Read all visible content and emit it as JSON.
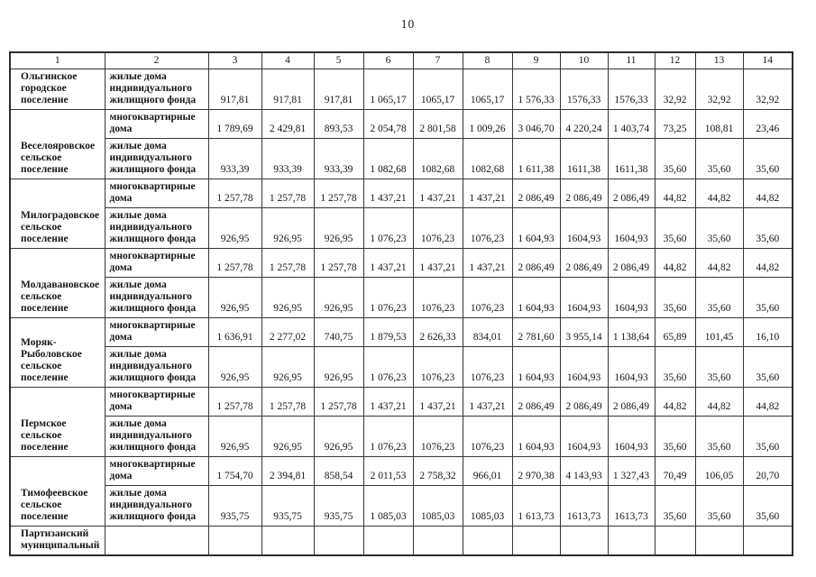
{
  "page": {
    "number": "10"
  },
  "table": {
    "header": [
      "1",
      "2",
      "3",
      "4",
      "5",
      "6",
      "7",
      "8",
      "9",
      "10",
      "11",
      "12",
      "13",
      "14"
    ],
    "rows": [
      {
        "settlement": "Ольгинское\nгородское\nпоселение",
        "rowspan": 1,
        "housing_type": "жилые дома\nиндивидуального\nжилищного фонда",
        "values": [
          "917,81",
          "917,81",
          "917,81",
          "1 065,17",
          "1065,17",
          "1065,17",
          "1 576,33",
          "1576,33",
          "1576,33",
          "32,92",
          "32,92",
          "32,92"
        ]
      },
      {
        "settlement": "Веселояровское\nсельское\nпоселение",
        "rowspan": 2,
        "housing_type": "многоквартирные\nдома",
        "values": [
          "1 789,69",
          "2 429,81",
          "893,53",
          "2 054,78",
          "2 801,58",
          "1 009,26",
          "3 046,70",
          "4 220,24",
          "1 403,74",
          "73,25",
          "108,81",
          "23,46"
        ]
      },
      {
        "housing_type": "жилые дома\nиндивидуального\nжилищного фонда",
        "values": [
          "933,39",
          "933,39",
          "933,39",
          "1 082,68",
          "1082,68",
          "1082,68",
          "1 611,38",
          "1611,38",
          "1611,38",
          "35,60",
          "35,60",
          "35,60"
        ]
      },
      {
        "settlement": "Милоградовское\nсельское\nпоселение",
        "rowspan": 2,
        "housing_type": "многоквартирные\nдома",
        "values": [
          "1 257,78",
          "1 257,78",
          "1 257,78",
          "1 437,21",
          "1 437,21",
          "1 437,21",
          "2 086,49",
          "2 086,49",
          "2 086,49",
          "44,82",
          "44,82",
          "44,82"
        ]
      },
      {
        "housing_type": "жилые дома\nиндивидуального\nжилищного фонда",
        "values": [
          "926,95",
          "926,95",
          "926,95",
          "1 076,23",
          "1076,23",
          "1076,23",
          "1 604,93",
          "1604,93",
          "1604,93",
          "35,60",
          "35,60",
          "35,60"
        ]
      },
      {
        "settlement": "Молдавановское\nсельское\nпоселение",
        "rowspan": 2,
        "housing_type": "многоквартирные\nдома",
        "values": [
          "1 257,78",
          "1 257,78",
          "1 257,78",
          "1 437,21",
          "1 437,21",
          "1 437,21",
          "2 086,49",
          "2 086,49",
          "2 086,49",
          "44,82",
          "44,82",
          "44,82"
        ]
      },
      {
        "housing_type": "жилые дома\nиндивидуального\nжилищного фонда",
        "values": [
          "926,95",
          "926,95",
          "926,95",
          "1 076,23",
          "1076,23",
          "1076,23",
          "1 604,93",
          "1604,93",
          "1604,93",
          "35,60",
          "35,60",
          "35,60"
        ]
      },
      {
        "settlement": "Моряк-\nРыболовское\nсельское\nпоселение",
        "rowspan": 2,
        "housing_type": "многоквартирные\nдома",
        "values": [
          "1 636,91",
          "2 277,02",
          "740,75",
          "1 879,53",
          "2 626,33",
          "834,01",
          "2 781,60",
          "3 955,14",
          "1 138,64",
          "65,89",
          "101,45",
          "16,10"
        ]
      },
      {
        "housing_type": "жилые дома\nиндивидуального\nжилищного фонда",
        "values": [
          "926,95",
          "926,95",
          "926,95",
          "1 076,23",
          "1076,23",
          "1076,23",
          "1 604,93",
          "1604,93",
          "1604,93",
          "35,60",
          "35,60",
          "35,60"
        ]
      },
      {
        "settlement": "Пермское\nсельское\nпоселение",
        "rowspan": 2,
        "housing_type": "многоквартирные\nдома",
        "values": [
          "1 257,78",
          "1 257,78",
          "1 257,78",
          "1 437,21",
          "1 437,21",
          "1 437,21",
          "2 086,49",
          "2 086,49",
          "2 086,49",
          "44,82",
          "44,82",
          "44,82"
        ]
      },
      {
        "housing_type": "жилые дома\nиндивидуального\nжилищного фонда",
        "values": [
          "926,95",
          "926,95",
          "926,95",
          "1 076,23",
          "1076,23",
          "1076,23",
          "1 604,93",
          "1604,93",
          "1604,93",
          "35,60",
          "35,60",
          "35,60"
        ]
      },
      {
        "settlement": "Тимофеевское\nсельское\nпоселение",
        "rowspan": 2,
        "housing_type": "многоквартирные\nдома",
        "values": [
          "1 754,70",
          "2 394,81",
          "858,54",
          "2 011,53",
          "2 758,32",
          "966,01",
          "2 970,38",
          "4 143,93",
          "1 327,43",
          "70,49",
          "106,05",
          "20,70"
        ]
      },
      {
        "housing_type": "жилые дома\nиндивидуального\nжилищного фонда",
        "values": [
          "935,75",
          "935,75",
          "935,75",
          "1 085,03",
          "1085,03",
          "1085,03",
          "1 613,73",
          "1613,73",
          "1613,73",
          "35,60",
          "35,60",
          "35,60"
        ]
      },
      {
        "settlement": "Партизанский\nмуниципальный",
        "rowspan": 1,
        "housing_type": "",
        "values": [
          "",
          "",
          "",
          "",
          "",
          "",
          "",
          "",
          "",
          "",
          "",
          ""
        ]
      }
    ]
  }
}
